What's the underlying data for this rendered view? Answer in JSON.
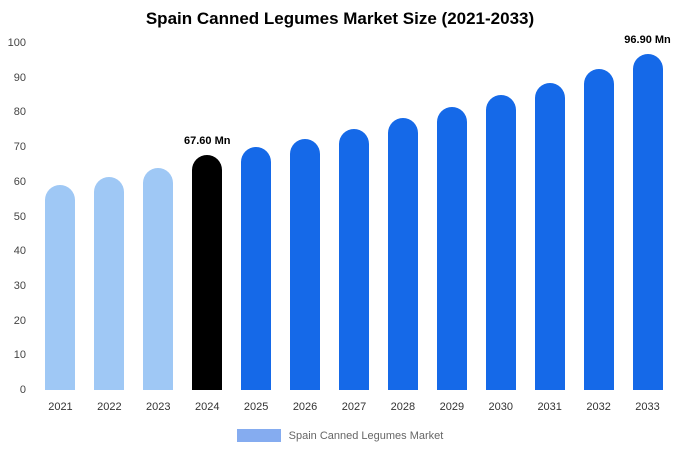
{
  "chart_data": {
    "type": "bar",
    "title": "Spain Canned Legumes Market Size (2021-2033)",
    "categories": [
      "2021",
      "2022",
      "2023",
      "2024",
      "2025",
      "2026",
      "2027",
      "2028",
      "2029",
      "2030",
      "2031",
      "2032",
      "2033"
    ],
    "values": [
      59.0,
      61.5,
      64.0,
      67.6,
      69.9,
      72.4,
      75.3,
      78.3,
      81.6,
      85.0,
      88.6,
      92.4,
      96.9
    ],
    "bar_colors": [
      "#9fc8f5",
      "#9fc8f5",
      "#9fc8f5",
      "#000000",
      "#1569e8",
      "#1569e8",
      "#1569e8",
      "#1569e8",
      "#1569e8",
      "#1569e8",
      "#1569e8",
      "#1569e8",
      "#1569e8"
    ],
    "annotations": [
      {
        "index": 3,
        "text": "67.60 Mn"
      },
      {
        "index": 12,
        "text": "96.90 Mn"
      }
    ],
    "xlabel": "",
    "ylabel": "",
    "ylim": [
      0,
      100
    ],
    "ytick_step": 10,
    "grid": false,
    "legend_position": "bottom"
  },
  "legend": {
    "label": "Spain Canned Legumes Market",
    "swatch_color": "#85acf0"
  }
}
